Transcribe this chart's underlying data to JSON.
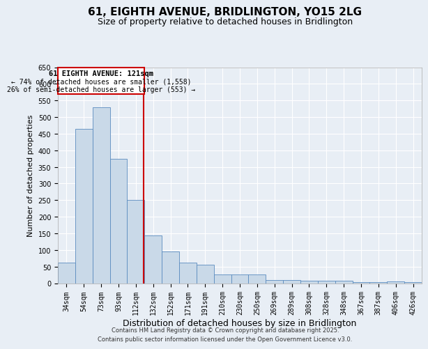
{
  "title": "61, EIGHTH AVENUE, BRIDLINGTON, YO15 2LG",
  "subtitle": "Size of property relative to detached houses in Bridlington",
  "xlabel": "Distribution of detached houses by size in Bridlington",
  "ylabel": "Number of detached properties",
  "categories": [
    "34sqm",
    "54sqm",
    "73sqm",
    "93sqm",
    "112sqm",
    "132sqm",
    "152sqm",
    "171sqm",
    "191sqm",
    "210sqm",
    "230sqm",
    "250sqm",
    "269sqm",
    "289sqm",
    "308sqm",
    "328sqm",
    "348sqm",
    "367sqm",
    "387sqm",
    "406sqm",
    "426sqm"
  ],
  "values": [
    62,
    465,
    530,
    375,
    250,
    143,
    95,
    62,
    55,
    27,
    27,
    27,
    10,
    10,
    8,
    7,
    7,
    4,
    4,
    5,
    4
  ],
  "bar_color": "#c9d9e8",
  "bar_edge_color": "#5a8bbf",
  "bg_color": "#e8eef5",
  "grid_color": "#ffffff",
  "vline_color": "#cc0000",
  "annotation_box_color": "#cc0000",
  "annotation_text_line1": "61 EIGHTH AVENUE: 121sqm",
  "annotation_text_line2": "← 74% of detached houses are smaller (1,558)",
  "annotation_text_line3": "26% of semi-detached houses are larger (553) →",
  "ylim": [
    0,
    650
  ],
  "yticks": [
    0,
    50,
    100,
    150,
    200,
    250,
    300,
    350,
    400,
    450,
    500,
    550,
    600,
    650
  ],
  "footer1": "Contains HM Land Registry data © Crown copyright and database right 2025.",
  "footer2": "Contains public sector information licensed under the Open Government Licence v3.0.",
  "title_fontsize": 11,
  "subtitle_fontsize": 9,
  "xlabel_fontsize": 9,
  "ylabel_fontsize": 8,
  "tick_fontsize": 7,
  "annotation_fontsize": 7.5,
  "footer_fontsize": 6
}
